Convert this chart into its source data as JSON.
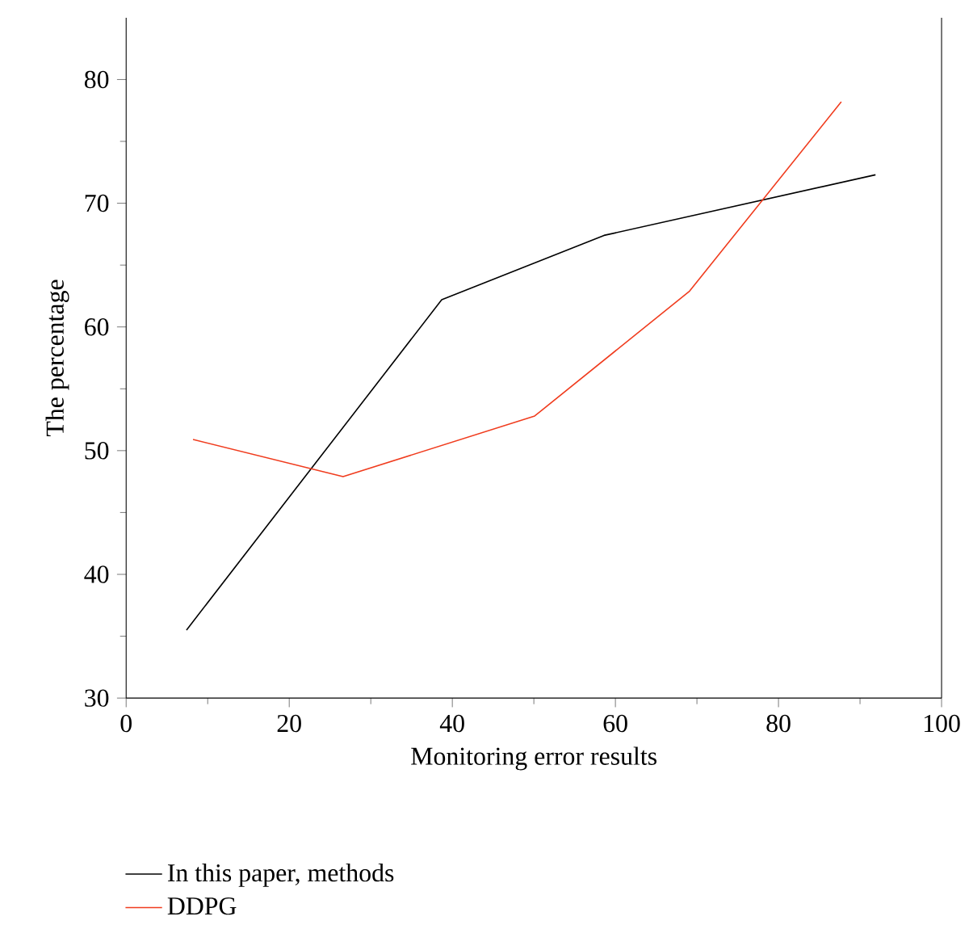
{
  "chart_data": {
    "type": "line",
    "xlabel": "Monitoring error results",
    "ylabel": "The percentage",
    "xlim": [
      0,
      100
    ],
    "xticks": [
      0,
      20,
      40,
      60,
      80,
      100
    ],
    "ylim": [
      30,
      85
    ],
    "yticks": [
      30,
      40,
      50,
      60,
      70,
      80
    ],
    "legend": "bottom left",
    "grid": false,
    "marker": "none",
    "line_style": "solid",
    "series": [
      {
        "name": "In this paper, methods",
        "color": "#000000",
        "x": [
          7.4,
          38.7,
          58.6,
          91.9
        ],
        "values": [
          35.5,
          62.2,
          67.4,
          72.3
        ]
      },
      {
        "name": "DDPG",
        "color": "#f03c1e",
        "x": [
          8.2,
          26.6,
          50.1,
          69.1,
          87.7
        ],
        "values": [
          50.9,
          47.9,
          52.8,
          62.9,
          78.2
        ]
      }
    ]
  }
}
